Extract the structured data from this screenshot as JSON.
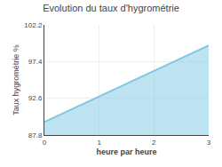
{
  "chart_data": {
    "type": "area",
    "title": "Evolution du taux d'hygrométrie",
    "xlabel": "heure par heure",
    "ylabel": "Taux hygrométrie %",
    "x": [
      0,
      3
    ],
    "values": [
      89.5,
      99.5
    ],
    "color": "#7ec8e3",
    "xlim": [
      0,
      3
    ],
    "xticks": [
      0,
      1,
      2,
      3
    ],
    "ylim": [
      87.8,
      102.2
    ],
    "yticks": [
      87.8,
      92.6,
      97.4,
      102.2
    ],
    "grid": true
  }
}
